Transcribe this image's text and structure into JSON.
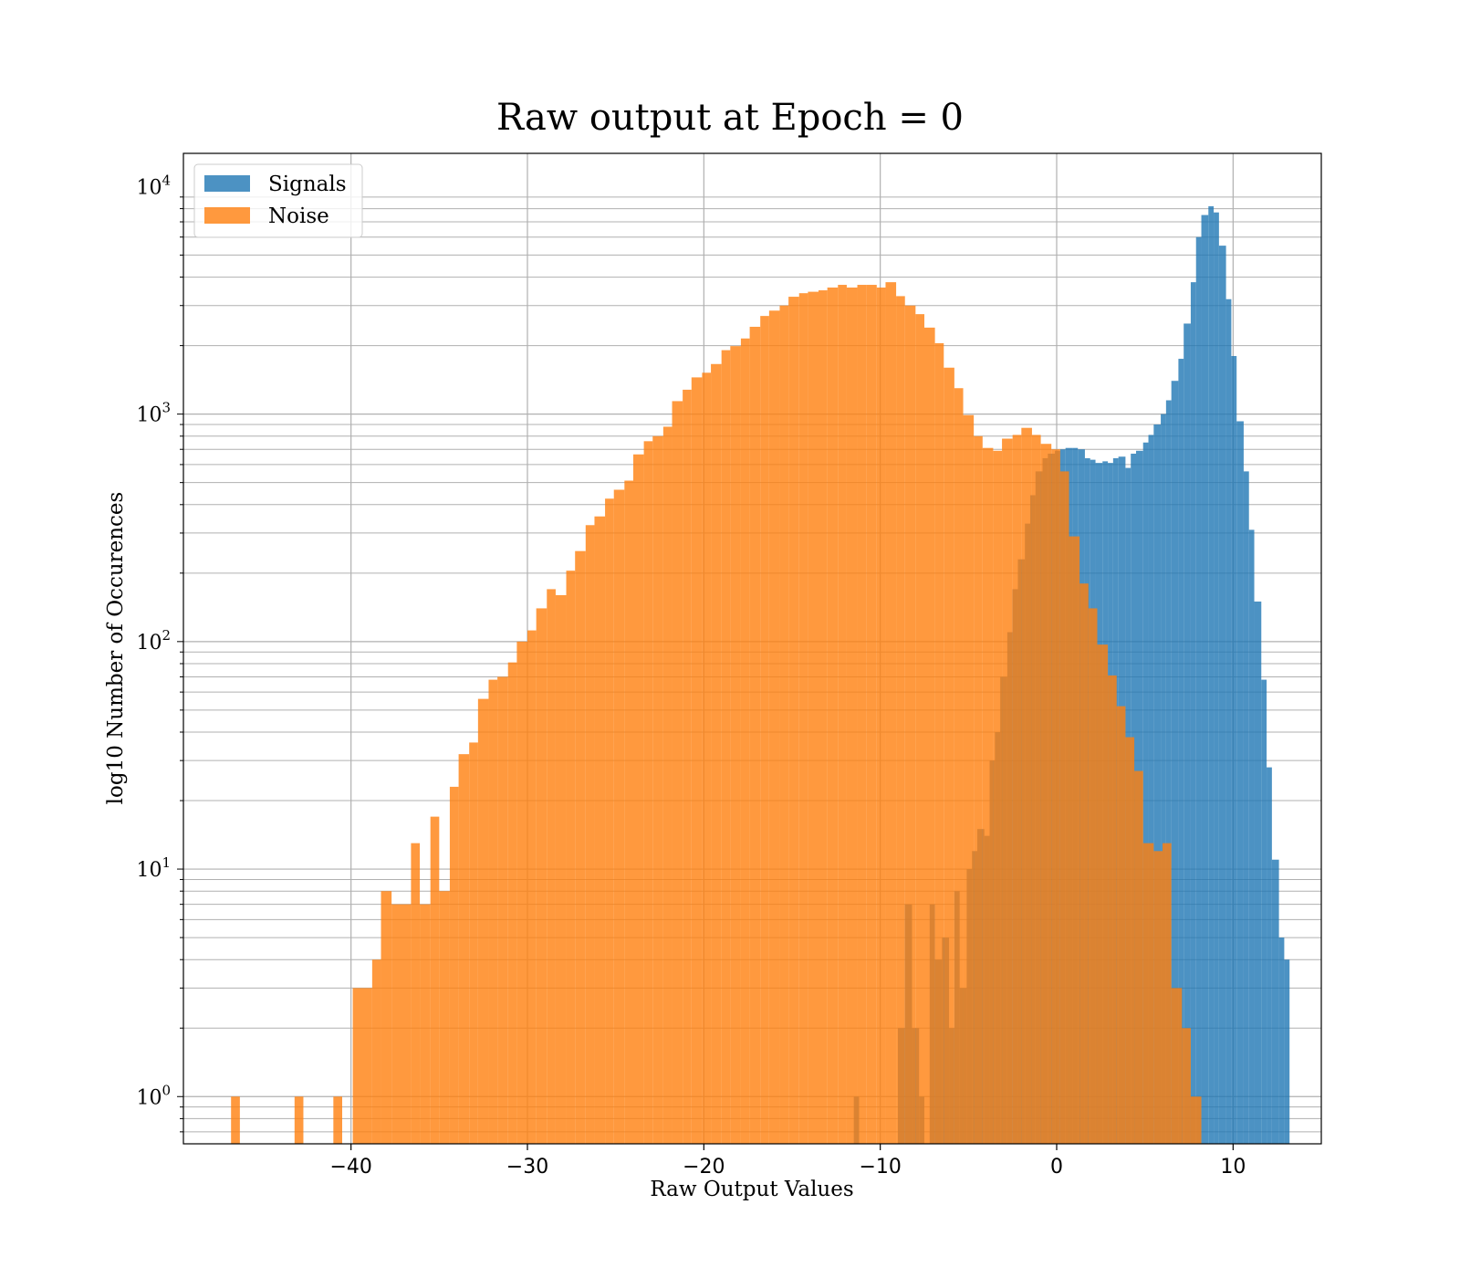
{
  "chart_data": {
    "type": "bar",
    "title": "Raw output at Epoch = 0",
    "xlabel": "Raw Output Values",
    "ylabel": "log10 Number of Occurences",
    "xlim": [
      -49.5,
      15
    ],
    "ylim": [
      0.62,
      14000
    ],
    "yscale": "log",
    "grid": true,
    "legend_position": "top-left",
    "x_ticks": [
      -40,
      -30,
      -20,
      -10,
      0,
      10
    ],
    "x_tick_labels": [
      "−40",
      "−30",
      "−20",
      "−10",
      "0",
      "10"
    ],
    "y_ticks": [
      {
        "value": 1,
        "base": "10",
        "exp": "0"
      },
      {
        "value": 10,
        "base": "10",
        "exp": "1"
      },
      {
        "value": 100,
        "base": "10",
        "exp": "2"
      },
      {
        "value": 1000,
        "base": "10",
        "exp": "3"
      },
      {
        "value": 10000,
        "base": "10",
        "exp": "4"
      }
    ],
    "series": [
      {
        "name": "Signals",
        "color": "#1f77b4",
        "opacity": 0.8,
        "bins": [
          [
            -11.5,
            -11.2,
            1
          ],
          [
            -9.0,
            -8.6,
            2
          ],
          [
            -8.6,
            -8.2,
            7
          ],
          [
            -8.2,
            -7.8,
            2
          ],
          [
            -7.8,
            -7.5,
            1
          ],
          [
            -7.2,
            -6.9,
            7
          ],
          [
            -6.9,
            -6.5,
            4
          ],
          [
            -6.5,
            -6.1,
            5
          ],
          [
            -6.1,
            -5.8,
            2
          ],
          [
            -5.8,
            -5.5,
            8
          ],
          [
            -5.5,
            -5.1,
            3
          ],
          [
            -5.1,
            -4.8,
            10
          ],
          [
            -4.8,
            -4.5,
            12
          ],
          [
            -4.5,
            -4.1,
            15
          ],
          [
            -4.1,
            -3.8,
            14
          ],
          [
            -3.8,
            -3.5,
            30
          ],
          [
            -3.5,
            -3.2,
            40
          ],
          [
            -3.2,
            -2.8,
            70
          ],
          [
            -2.8,
            -2.5,
            110
          ],
          [
            -2.5,
            -2.2,
            170
          ],
          [
            -2.2,
            -1.8,
            230
          ],
          [
            -1.8,
            -1.5,
            330
          ],
          [
            -1.5,
            -1.2,
            440
          ],
          [
            -1.2,
            -0.8,
            560
          ],
          [
            -0.8,
            -0.5,
            640
          ],
          [
            -0.5,
            -0.1,
            670
          ],
          [
            -0.1,
            0.2,
            690
          ],
          [
            0.2,
            0.5,
            700
          ],
          [
            0.5,
            0.9,
            710
          ],
          [
            0.9,
            1.2,
            710
          ],
          [
            1.2,
            1.6,
            700
          ],
          [
            1.6,
            1.9,
            640
          ],
          [
            1.9,
            2.2,
            630
          ],
          [
            2.2,
            2.6,
            610
          ],
          [
            2.6,
            2.9,
            620
          ],
          [
            2.9,
            3.2,
            610
          ],
          [
            3.2,
            3.5,
            640
          ],
          [
            3.5,
            3.9,
            650
          ],
          [
            3.9,
            4.2,
            580
          ],
          [
            4.2,
            4.5,
            670
          ],
          [
            4.5,
            4.9,
            690
          ],
          [
            4.9,
            5.2,
            750
          ],
          [
            5.2,
            5.5,
            810
          ],
          [
            5.5,
            5.9,
            900
          ],
          [
            5.9,
            6.2,
            1000
          ],
          [
            6.2,
            6.5,
            1150
          ],
          [
            6.5,
            6.9,
            1400
          ],
          [
            6.9,
            7.2,
            1750
          ],
          [
            7.2,
            7.6,
            2500
          ],
          [
            7.6,
            7.9,
            3800
          ],
          [
            7.9,
            8.2,
            6000
          ],
          [
            8.2,
            8.6,
            7500
          ],
          [
            8.6,
            8.9,
            8200
          ],
          [
            8.9,
            9.2,
            7700
          ],
          [
            9.2,
            9.6,
            5500
          ],
          [
            9.6,
            9.9,
            3200
          ],
          [
            9.9,
            10.2,
            1800
          ],
          [
            10.2,
            10.6,
            930
          ],
          [
            10.6,
            10.9,
            560
          ],
          [
            10.9,
            11.2,
            310
          ],
          [
            11.2,
            11.6,
            150
          ],
          [
            11.6,
            11.9,
            68
          ],
          [
            11.9,
            12.2,
            28
          ],
          [
            12.2,
            12.6,
            11
          ],
          [
            12.6,
            12.9,
            5
          ],
          [
            12.9,
            13.2,
            4
          ]
        ]
      },
      {
        "name": "Noise",
        "color": "#ff7f0e",
        "opacity": 0.8,
        "bins": [
          [
            -46.8,
            -46.3,
            1
          ],
          [
            -43.2,
            -42.7,
            1
          ],
          [
            -41.0,
            -40.5,
            1
          ],
          [
            -39.9,
            -38.8,
            3
          ],
          [
            -38.8,
            -38.3,
            4
          ],
          [
            -38.3,
            -37.7,
            8
          ],
          [
            -37.7,
            -36.6,
            7
          ],
          [
            -36.6,
            -36.1,
            13
          ],
          [
            -36.1,
            -35.5,
            7
          ],
          [
            -35.5,
            -35.0,
            17
          ],
          [
            -35.0,
            -34.4,
            8
          ],
          [
            -34.4,
            -33.9,
            23
          ],
          [
            -33.9,
            -33.3,
            32
          ],
          [
            -33.3,
            -32.8,
            36
          ],
          [
            -32.8,
            -32.2,
            56
          ],
          [
            -32.2,
            -31.7,
            68
          ],
          [
            -31.7,
            -31.1,
            70
          ],
          [
            -31.1,
            -30.6,
            81
          ],
          [
            -30.6,
            -30.0,
            100
          ],
          [
            -30.0,
            -29.5,
            112
          ],
          [
            -29.5,
            -28.9,
            140
          ],
          [
            -28.9,
            -28.4,
            170
          ],
          [
            -28.4,
            -27.8,
            160
          ],
          [
            -27.8,
            -27.3,
            205
          ],
          [
            -27.3,
            -26.7,
            250
          ],
          [
            -26.7,
            -26.2,
            325
          ],
          [
            -26.2,
            -25.6,
            355
          ],
          [
            -25.6,
            -25.1,
            425
          ],
          [
            -25.1,
            -24.5,
            465
          ],
          [
            -24.5,
            -24.0,
            510
          ],
          [
            -24.0,
            -23.4,
            665
          ],
          [
            -23.4,
            -22.9,
            760
          ],
          [
            -22.9,
            -22.3,
            800
          ],
          [
            -22.3,
            -21.8,
            880
          ],
          [
            -21.8,
            -21.2,
            1140
          ],
          [
            -21.2,
            -20.7,
            1280
          ],
          [
            -20.7,
            -20.1,
            1450
          ],
          [
            -20.1,
            -19.6,
            1520
          ],
          [
            -19.6,
            -19.0,
            1660
          ],
          [
            -19.0,
            -18.5,
            1910
          ],
          [
            -18.5,
            -17.9,
            1990
          ],
          [
            -17.9,
            -17.4,
            2150
          ],
          [
            -17.4,
            -16.8,
            2420
          ],
          [
            -16.8,
            -16.3,
            2700
          ],
          [
            -16.3,
            -15.7,
            2850
          ],
          [
            -15.7,
            -15.2,
            3000
          ],
          [
            -15.2,
            -14.6,
            3280
          ],
          [
            -14.6,
            -14.1,
            3400
          ],
          [
            -14.1,
            -13.5,
            3450
          ],
          [
            -13.5,
            -13.0,
            3500
          ],
          [
            -13.0,
            -12.4,
            3600
          ],
          [
            -12.4,
            -11.9,
            3700
          ],
          [
            -11.9,
            -11.3,
            3600
          ],
          [
            -11.3,
            -10.8,
            3700
          ],
          [
            -10.8,
            -10.2,
            3700
          ],
          [
            -10.2,
            -9.7,
            3600
          ],
          [
            -9.7,
            -9.1,
            3800
          ],
          [
            -9.1,
            -8.6,
            3300
          ],
          [
            -8.6,
            -8.0,
            3000
          ],
          [
            -8.0,
            -7.5,
            2750
          ],
          [
            -7.5,
            -6.9,
            2400
          ],
          [
            -6.9,
            -6.4,
            2050
          ],
          [
            -6.4,
            -5.8,
            1600
          ],
          [
            -5.8,
            -5.3,
            1300
          ],
          [
            -5.3,
            -4.7,
            990
          ],
          [
            -4.7,
            -4.2,
            800
          ],
          [
            -4.2,
            -3.6,
            710
          ],
          [
            -3.6,
            -3.1,
            690
          ],
          [
            -3.1,
            -2.5,
            780
          ],
          [
            -2.5,
            -2.0,
            810
          ],
          [
            -2.0,
            -1.4,
            870
          ],
          [
            -1.4,
            -0.9,
            810
          ],
          [
            -0.9,
            -0.3,
            740
          ],
          [
            -0.3,
            0.2,
            700
          ],
          [
            0.2,
            0.7,
            560
          ],
          [
            0.7,
            1.3,
            290
          ],
          [
            1.3,
            1.8,
            180
          ],
          [
            1.8,
            2.3,
            140
          ],
          [
            2.3,
            2.9,
            97
          ],
          [
            2.9,
            3.4,
            71
          ],
          [
            3.4,
            3.9,
            52
          ],
          [
            3.9,
            4.4,
            38
          ],
          [
            4.4,
            4.9,
            27
          ],
          [
            4.9,
            5.5,
            13
          ],
          [
            5.5,
            6.0,
            12
          ],
          [
            6.0,
            6.5,
            13
          ],
          [
            6.5,
            7.1,
            3
          ],
          [
            7.1,
            7.6,
            2
          ],
          [
            7.6,
            8.2,
            1
          ]
        ]
      }
    ]
  }
}
